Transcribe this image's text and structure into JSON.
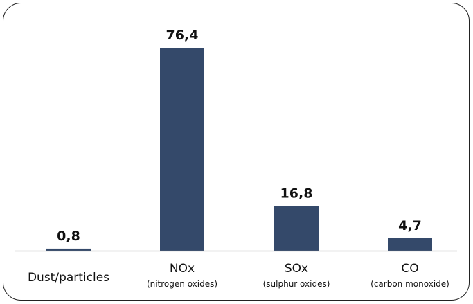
{
  "chart_data": {
    "type": "bar",
    "categories": [
      "Dust/particles",
      "NOx",
      "SOx",
      "CO"
    ],
    "category_sublabels": [
      "",
      "(nitrogen oxides)",
      "(sulphur oxides)",
      "(carbon monoxide)"
    ],
    "values": [
      0.8,
      76.4,
      16.8,
      4.7
    ],
    "value_labels": [
      "0,8",
      "76,4",
      "16,8",
      "4,7"
    ],
    "ylim": [
      0,
      80
    ],
    "grid": false,
    "legend": "none",
    "bar_color": "#34496a",
    "axis_color": "#9a9a9a"
  }
}
